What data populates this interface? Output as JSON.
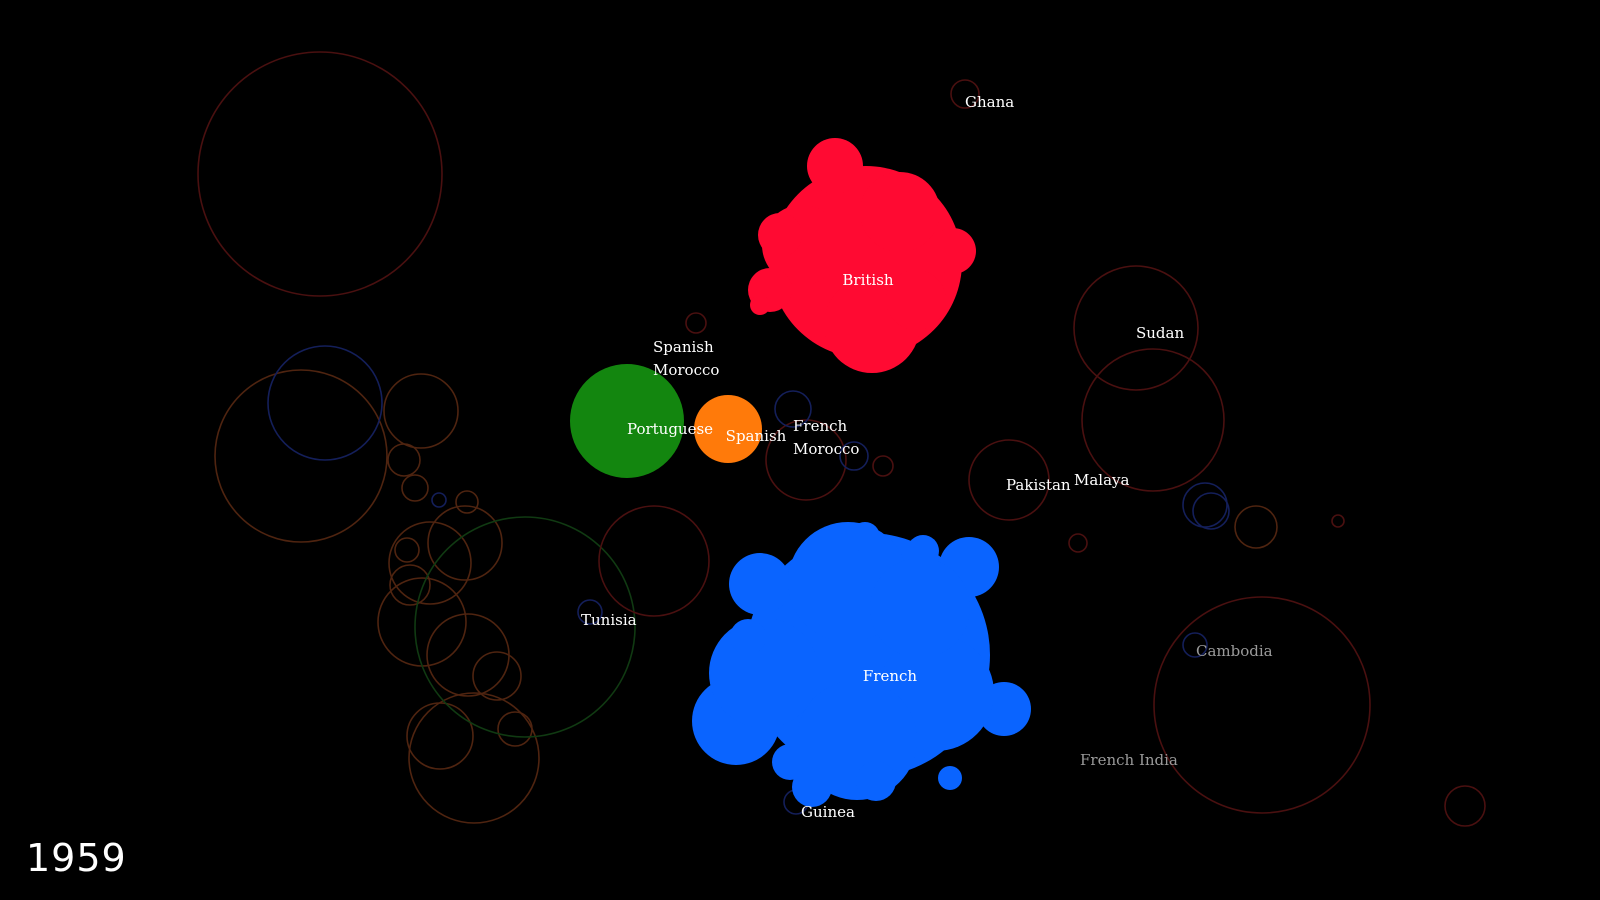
{
  "year": "1959",
  "colors": {
    "British": "#ff0a32",
    "French": "#0a64ff",
    "Portuguese": "#13860f",
    "Spanish": "#ff7a0a",
    "ghost_red": "#4a1010",
    "ghost_orange": "#4f2410",
    "ghost_blue": "#141f5a",
    "ghost_green": "#103a12"
  },
  "chart_data": {
    "type": "bubble-cluster",
    "title": "",
    "empires": [
      {
        "name": "British",
        "color_key": "British"
      },
      {
        "name": "French",
        "color_key": "French"
      },
      {
        "name": "Portuguese",
        "color_key": "Portuguese"
      },
      {
        "name": "Spanish",
        "color_key": "Spanish"
      }
    ],
    "territory_labels": [
      {
        "text": "Ghana",
        "status": "active"
      },
      {
        "text": "Sudan",
        "status": "active"
      },
      {
        "text": "Spanish Morocco",
        "lines": [
          "Spanish",
          "Morocco"
        ],
        "status": "active"
      },
      {
        "text": "French Morocco",
        "lines": [
          "French",
          "Morocco"
        ],
        "status": "active"
      },
      {
        "text": "Pakistan",
        "status": "active"
      },
      {
        "text": "Malaya",
        "status": "active"
      },
      {
        "text": "Tunisia",
        "status": "active"
      },
      {
        "text": "Guinea",
        "status": "active"
      },
      {
        "text": "Cambodia",
        "status": "faded"
      },
      {
        "text": "French India",
        "status": "faded"
      }
    ]
  }
}
